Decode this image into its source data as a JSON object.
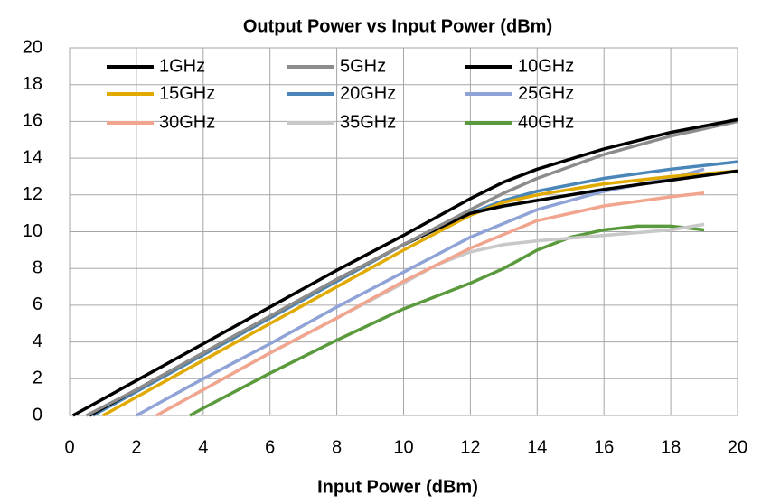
{
  "chart_data": {
    "type": "line",
    "title": "Output Power vs Input Power (dBm)",
    "x_label": "Input Power (dBm)",
    "xlim": [
      0,
      20
    ],
    "xticks": [
      0,
      2,
      4,
      6,
      8,
      10,
      12,
      14,
      16,
      18,
      20
    ],
    "ylim": [
      0,
      20
    ],
    "yticks": [
      0,
      2,
      4,
      6,
      8,
      10,
      12,
      14,
      16,
      18,
      20
    ],
    "grid": true,
    "legend": "top-left",
    "series": [
      {
        "name": "1GHz",
        "color": "#000000",
        "x": [
          0.1,
          2,
          4,
          6,
          8,
          10,
          12,
          13,
          14,
          16,
          18,
          20
        ],
        "values": [
          0,
          1.9,
          3.9,
          5.9,
          7.9,
          9.8,
          11.8,
          12.7,
          13.4,
          14.5,
          15.4,
          16.1
        ]
      },
      {
        "name": "5GHz",
        "color": "#8c8c8c",
        "x": [
          0.5,
          2,
          4,
          6,
          8,
          10,
          12,
          13,
          14,
          16,
          18,
          20
        ],
        "values": [
          0,
          1.4,
          3.4,
          5.4,
          7.4,
          9.3,
          11.2,
          12.1,
          12.9,
          14.2,
          15.2,
          16.0
        ]
      },
      {
        "name": "10GHz",
        "color": "#000000",
        "x": [
          0.6,
          2,
          4,
          6,
          8,
          10,
          12,
          13,
          14,
          16,
          18,
          20
        ],
        "values": [
          0,
          1.4,
          3.4,
          5.4,
          7.4,
          9.3,
          11.0,
          11.4,
          11.7,
          12.3,
          12.8,
          13.3
        ]
      },
      {
        "name": "15GHz",
        "color": "#e0aa00",
        "x": [
          1.0,
          2,
          4,
          6,
          8,
          10,
          12,
          13,
          14,
          16,
          18,
          20
        ],
        "values": [
          0,
          1.0,
          3.0,
          5.0,
          7.0,
          9.0,
          10.9,
          11.6,
          12.0,
          12.6,
          13.0,
          13.3
        ]
      },
      {
        "name": "20GHz",
        "color": "#4a86b8",
        "x": [
          0.7,
          2,
          4,
          6,
          8,
          10,
          12,
          13,
          14,
          16,
          18,
          20
        ],
        "values": [
          0,
          1.3,
          3.3,
          5.3,
          7.3,
          9.3,
          11.0,
          11.7,
          12.2,
          12.9,
          13.4,
          13.8
        ]
      },
      {
        "name": "25GHz",
        "color": "#8fa3d6",
        "x": [
          2.0,
          4,
          6,
          8,
          10,
          12,
          14,
          16,
          18,
          19
        ],
        "values": [
          0,
          2.0,
          3.9,
          5.9,
          7.8,
          9.7,
          11.2,
          12.2,
          12.9,
          13.4
        ]
      },
      {
        "name": "30GHz",
        "color": "#f2a58e",
        "x": [
          2.6,
          4,
          6,
          8,
          10,
          12,
          14,
          16,
          18,
          19
        ],
        "values": [
          0,
          1.4,
          3.4,
          5.3,
          7.3,
          9.1,
          10.6,
          11.4,
          11.9,
          12.1
        ]
      },
      {
        "name": "35GHz",
        "color": "#c8c8c8",
        "x": [
          2.6,
          4,
          6,
          8,
          10,
          11,
          12,
          13,
          14,
          16,
          18,
          19
        ],
        "values": [
          0,
          1.4,
          3.4,
          5.3,
          7.2,
          8.2,
          8.9,
          9.3,
          9.5,
          9.8,
          10.1,
          10.4
        ]
      },
      {
        "name": "40GHz",
        "color": "#5a9a3c",
        "x": [
          3.6,
          4,
          6,
          8,
          10,
          12,
          13,
          14,
          15,
          16,
          17,
          18,
          19
        ],
        "values": [
          0,
          0.4,
          2.3,
          4.1,
          5.8,
          7.2,
          8.0,
          9.0,
          9.7,
          10.1,
          10.3,
          10.3,
          10.1
        ]
      }
    ]
  }
}
